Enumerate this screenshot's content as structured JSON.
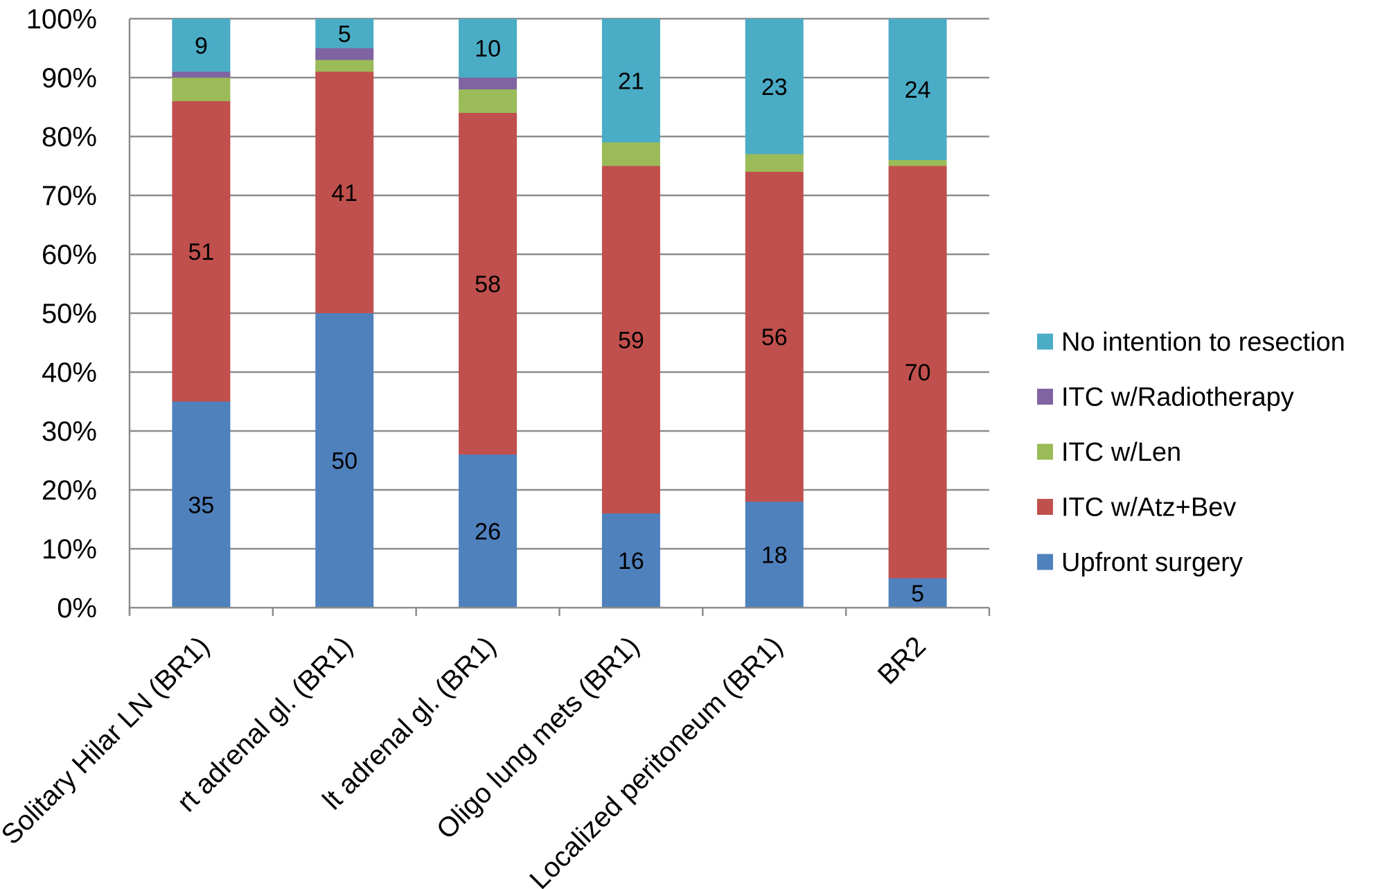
{
  "chart_data": {
    "type": "bar",
    "stacked": true,
    "percent_stacked": true,
    "categories": [
      "Solitary Hilar LN (BR1)",
      "rt adrenal gl. (BR1)",
      "lt adrenal gl. (BR1)",
      "Oligo lung mets (BR1)",
      "Localized peritoneum (BR1)",
      "BR2"
    ],
    "series": [
      {
        "name": "Upfront surgery",
        "color": "#4F81BD",
        "values": [
          35,
          50,
          26,
          16,
          18,
          5
        ],
        "labels": [
          "35",
          "50",
          "26",
          "16",
          "18",
          "5"
        ]
      },
      {
        "name": "ITC w/Atz+Bev",
        "color": "#C0504D",
        "values": [
          51,
          41,
          58,
          59,
          56,
          70
        ],
        "labels": [
          "51",
          "41",
          "58",
          "59",
          "56",
          "70"
        ]
      },
      {
        "name": "ITC w/Len",
        "color": "#9BBB59",
        "values": [
          4,
          2,
          4,
          4,
          3,
          1
        ],
        "labels": [
          null,
          null,
          null,
          null,
          null,
          null
        ]
      },
      {
        "name": "ITC w/Radiotherapy",
        "color": "#8064A2",
        "values": [
          1,
          2,
          2,
          0,
          0,
          0
        ],
        "labels": [
          null,
          null,
          null,
          null,
          null,
          null
        ]
      },
      {
        "name": "No intention to resection",
        "color": "#4BACC6",
        "values": [
          9,
          5,
          10,
          21,
          23,
          24
        ],
        "labels": [
          "9",
          "5",
          "10",
          "21",
          "23",
          "24"
        ]
      }
    ],
    "y_ticks": [
      "0%",
      "10%",
      "20%",
      "30%",
      "40%",
      "50%",
      "60%",
      "70%",
      "80%",
      "90%",
      "100%"
    ],
    "ylim": [
      0,
      100
    ],
    "grid": true,
    "legend_position": "right",
    "legend_order": [
      "No intention to resection",
      "ITC w/Radiotherapy",
      "ITC w/Len",
      "ITC w/Atz+Bev",
      "Upfront surgery"
    ],
    "title": "",
    "xlabel": "",
    "ylabel": ""
  }
}
